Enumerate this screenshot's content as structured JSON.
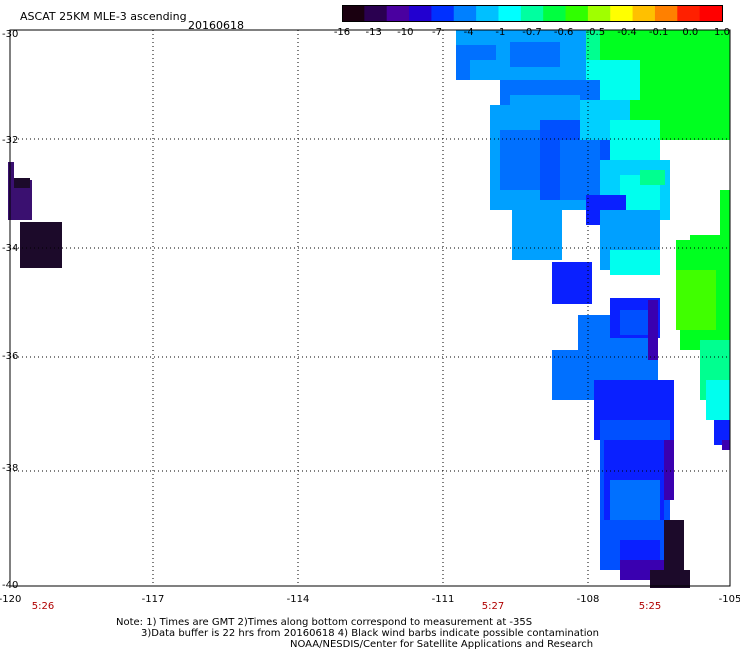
{
  "header": {
    "title": "ASCAT 25KM MLE-3 ascending",
    "date": "20160618"
  },
  "colorbar": {
    "ticks": [
      "-16",
      "-13",
      "-10",
      "-7",
      "-4",
      "-1",
      "-0.7",
      "-0.6",
      "-0.5",
      "-0.4",
      "-0.1",
      "0.0",
      "1.0"
    ],
    "colors": [
      "#1a0010",
      "#2a0050",
      "#4a00a0",
      "#2200d0",
      "#0030ff",
      "#0080ff",
      "#00c0ff",
      "#00ffff",
      "#00ffa0",
      "#00ff40",
      "#30ff00",
      "#a0ff00",
      "#ffff00",
      "#ffc000",
      "#ff8000",
      "#ff2000",
      "#ff0000"
    ]
  },
  "axes": {
    "y_labels": [
      "-30",
      "-32",
      "-34",
      "-36",
      "-38",
      "-40"
    ],
    "x_labels": [
      "-120",
      "-117",
      "-114",
      "-111",
      "-108",
      "-105"
    ],
    "times": [
      "5:26",
      "5:27",
      "5:25"
    ]
  },
  "notes": [
    "Note: 1) Times are GMT 2)Times along bottom correspond to measurement at -35S",
    "3)Data buffer is 22 hrs from 20160618 4) Black wind barbs indicate possible contamination",
    "NOAA/NESDIS/Center for Satellite Applications and Research"
  ],
  "map_colors": {
    "dark": "#1c0a2a",
    "purple": "#3a1070",
    "indigo": "#3a00b0",
    "blue": "#0a20ff",
    "blue2": "#0050ff",
    "azure": "#0070ff",
    "sky": "#00a0ff",
    "cyan": "#00d0ff",
    "aqua": "#00ffee",
    "mint": "#00ff90",
    "green": "#00ff20",
    "lime": "#40ff00"
  }
}
